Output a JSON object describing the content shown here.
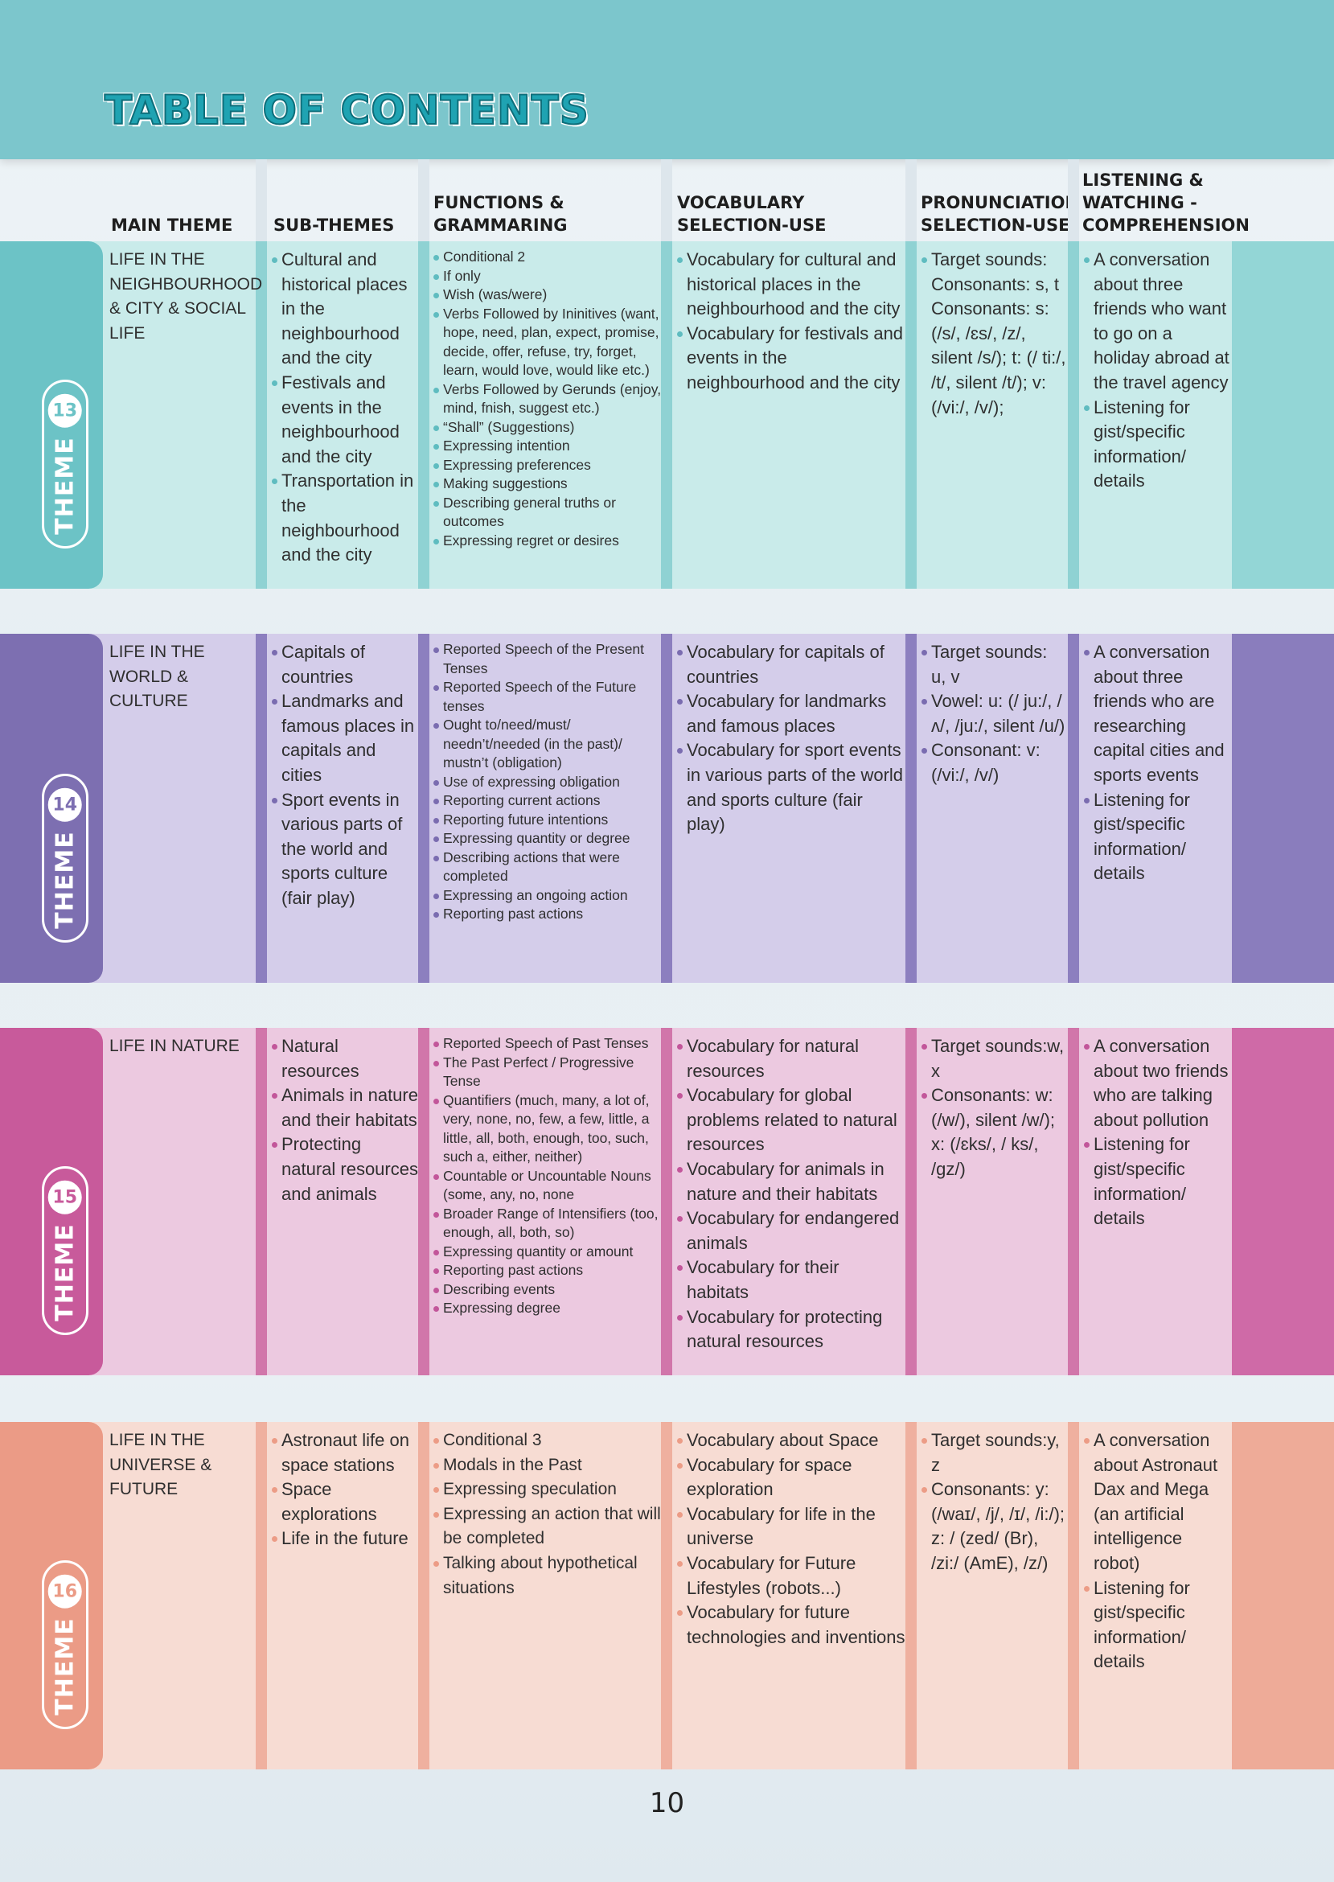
{
  "title": "TABLE OF CONTENTS",
  "headers": [
    "MAIN THEME",
    "SUB-THEMES",
    "FUNCTIONS & GRAMMARING",
    "VOCABULARY SELECTION-USE",
    "PRONUNCIATION SELECTION-USE",
    "LISTENING & WATCHING - COMPREHENSION"
  ],
  "headers_lines": [
    [
      "MAIN THEME"
    ],
    [
      "SUB-THEMES"
    ],
    [
      "FUNCTIONS &",
      "GRAMMARING"
    ],
    [
      "VOCABULARY",
      "SELECTION-USE"
    ],
    [
      "PRONUNCIATION",
      "SELECTION-USE"
    ],
    [
      "LISTENING &",
      "WATCHING -",
      "COMPREHENSION"
    ]
  ],
  "themes": [
    {
      "label": "THEME",
      "number": "13",
      "colors": {
        "tab": "#6cc3c6",
        "bg": "#c9ebea",
        "sep": "#8fd2d3",
        "bullet": "#5fbcc0",
        "right": "#93d6d6"
      },
      "main_theme": "LIFE IN THE NEIGHBOURHOOD & CITY & SOCIAL LIFE",
      "sub_themes": [
        "Cultural and historical places in the neighbourhood and the city",
        "Festivals and events in the neighbourhood and the city",
        "Transportation in the neighbourhood and the city"
      ],
      "functions": [
        "Conditional 2",
        "If only",
        "Wish (was/were)",
        "Verbs Followed by Ininitives (want, hope, need, plan, expect, promise, decide, offer, refuse, try, forget, learn, would love, would like etc.)",
        "Verbs Followed by Gerunds (enjoy, mind, fnish, suggest etc.)",
        "“Shall” (Suggestions)",
        "Expressing intention",
        "Expressing preferences",
        "Making suggestions",
        "Describing general truths or outcomes",
        "Expressing regret or desires"
      ],
      "vocabulary": [
        "Vocabulary for cultural and historical places in the neighbourhood and the city",
        "Vocabulary for festivals and events in the neighbourhood and the city"
      ],
      "pronunciation": [
        "Target sounds: Consonants: s, t Consonants: s: (/s/, /ɛs/, /z/, silent /s/); t: (/ ti:/, /t/, silent /t/); v: (/vi:/, /v/);"
      ],
      "listening": [
        "A conversation about three friends who want to go on a holiday abroad at the travel agency",
        "Listening for gist/specific information/ details"
      ]
    },
    {
      "label": "THEME",
      "number": "14",
      "colors": {
        "tab": "#7d6fb1",
        "bg": "#d4cdea",
        "sep": "#8c7fbf",
        "bullet": "#7a6cb0",
        "right": "#8a7dbd"
      },
      "main_theme": "LIFE IN THE WORLD & CULTURE",
      "sub_themes": [
        "Capitals of countries",
        "Landmarks and famous places in capitals and cities",
        "Sport events in various parts of the world and sports culture (fair play)"
      ],
      "functions": [
        "Reported Speech of the Present Tenses",
        "Reported Speech of the Future tenses",
        "Ought to/need/must/ needn’t/needed (in the past)/ mustn’t (obligation)",
        "Use of expressing obligation",
        "Reporting current actions",
        "Reporting future intentions",
        "Expressing quantity or degree",
        "Describing actions that were completed",
        "Expressing an ongoing action",
        "Reporting past actions"
      ],
      "vocabulary": [
        "Vocabulary for capitals of countries",
        "Vocabulary for landmarks and famous places",
        "Vocabulary for sport events in various parts of the world and sports culture (fair play)"
      ],
      "pronunciation": [
        "Target sounds: u, v",
        "Vowel: u: (/ ju:/, /ʌ/, /ju:/, silent /u/)",
        "Consonant: v: (/vi:/, /v/)"
      ],
      "listening": [
        "A conversation about three friends who are researching capital cities and sports events",
        "Listening for gist/specific information/ details"
      ]
    },
    {
      "label": "THEME",
      "number": "15",
      "colors": {
        "tab": "#c85a9b",
        "bg": "#ecc9e0",
        "sep": "#d176aa",
        "bullet": "#c2569a",
        "right": "#cf6aa7"
      },
      "main_theme": "LIFE IN NATURE",
      "sub_themes": [
        "Natural resources",
        "Animals in nature and their habitats",
        "Protecting natural resources and animals"
      ],
      "functions": [
        "Reported Speech of Past Tenses",
        "The Past Perfect / Progressive Tense",
        "Quantifiers (much, many, a lot of, very, none, no, few, a few, little, a little, all, both, enough, too, such, such a, either, neither)",
        "Countable or Uncountable Nouns (some, any, no, none",
        "Broader Range of Intensifiers (too, enough, all, both, so)",
        "Expressing quantity or amount",
        "Reporting past actions",
        "Describing events",
        "Expressing degree"
      ],
      "vocabulary": [
        "Vocabulary for natural resources",
        "Vocabulary for global problems related to natural resources",
        "Vocabulary for animals in nature and their habitats",
        "Vocabulary for endangered animals",
        "Vocabulary for their habitats",
        "Vocabulary for protecting natural resources"
      ],
      "pronunciation": [
        "Target sounds:w, x",
        "Consonants: w: (/w/), silent /w/); x: (/ɛks/, / ks/, /gz/)"
      ],
      "listening": [
        "A conversation about two friends who are talking about pollution",
        "Listening for gist/specific information/ details"
      ]
    },
    {
      "label": "THEME",
      "number": "16",
      "colors": {
        "tab": "#eb9b86",
        "bg": "#f7dcd3",
        "sep": "#efb09f",
        "bullet": "#ec9c86",
        "right": "#eeab98"
      },
      "main_theme": "LIFE IN THE UNIVERSE & FUTURE",
      "sub_themes": [
        "Astronaut life on space stations",
        "Space explorations",
        "Life in the future"
      ],
      "functions": [
        "Conditional 3",
        "Modals in the Past",
        "Expressing speculation",
        "Expressing an action that will be completed",
        "Talking about hypothetical situations"
      ],
      "vocabulary": [
        "Vocabulary about Space",
        "Vocabulary for space exploration",
        "Vocabulary for life in the universe",
        "Vocabulary for Future Lifestyles (robots...)",
        "Vocabulary for future technologies and inventions"
      ],
      "pronunciation": [
        "Target sounds:y, z",
        "Consonants: y: (/waɪ/, /j/, /ɪ/, /i:/); z: / (zed/ (Br), /zi:/ (AmE), /z/)"
      ],
      "listening": [
        "A conversation about Astronaut Dax and Mega (an artificial intelligence robot)",
        "Listening for gist/specific information/ details"
      ]
    }
  ],
  "page_number": "10"
}
